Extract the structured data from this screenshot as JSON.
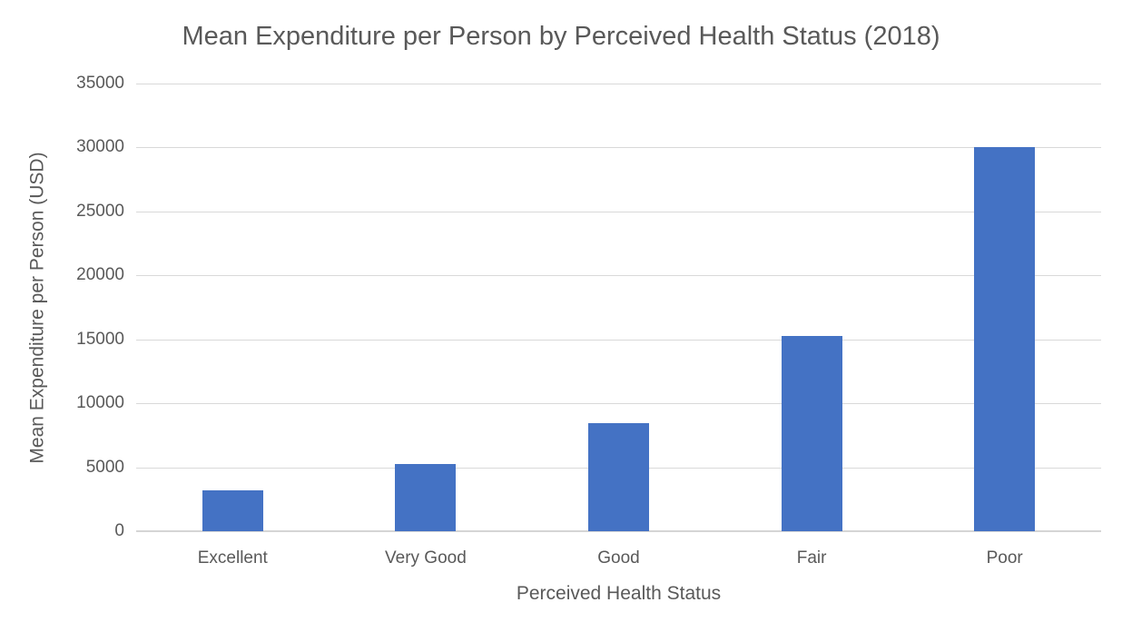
{
  "chart_data": {
    "type": "bar",
    "title": "Mean Expenditure per Person by Perceived Health Status (2018)",
    "xlabel": "Perceived Health Status",
    "ylabel": "Mean Expenditure per Person (USD)",
    "categories": [
      "Excellent",
      "Very Good",
      "Good",
      "Fair",
      "Poor"
    ],
    "values": [
      3200,
      5250,
      8450,
      15250,
      30050
    ],
    "ylim": [
      0,
      35000
    ],
    "ytick_step": 5000,
    "ytick_labels": [
      "0",
      "5000",
      "10000",
      "15000",
      "20000",
      "25000",
      "30000",
      "35000"
    ],
    "grid": "horizontal",
    "legend": "none",
    "colors": {
      "bar": "#4472C4",
      "text": "#595959",
      "gridline": "#D9D9D9",
      "axis_line": "#D5D5D5",
      "background": "#FFFFFF"
    }
  }
}
